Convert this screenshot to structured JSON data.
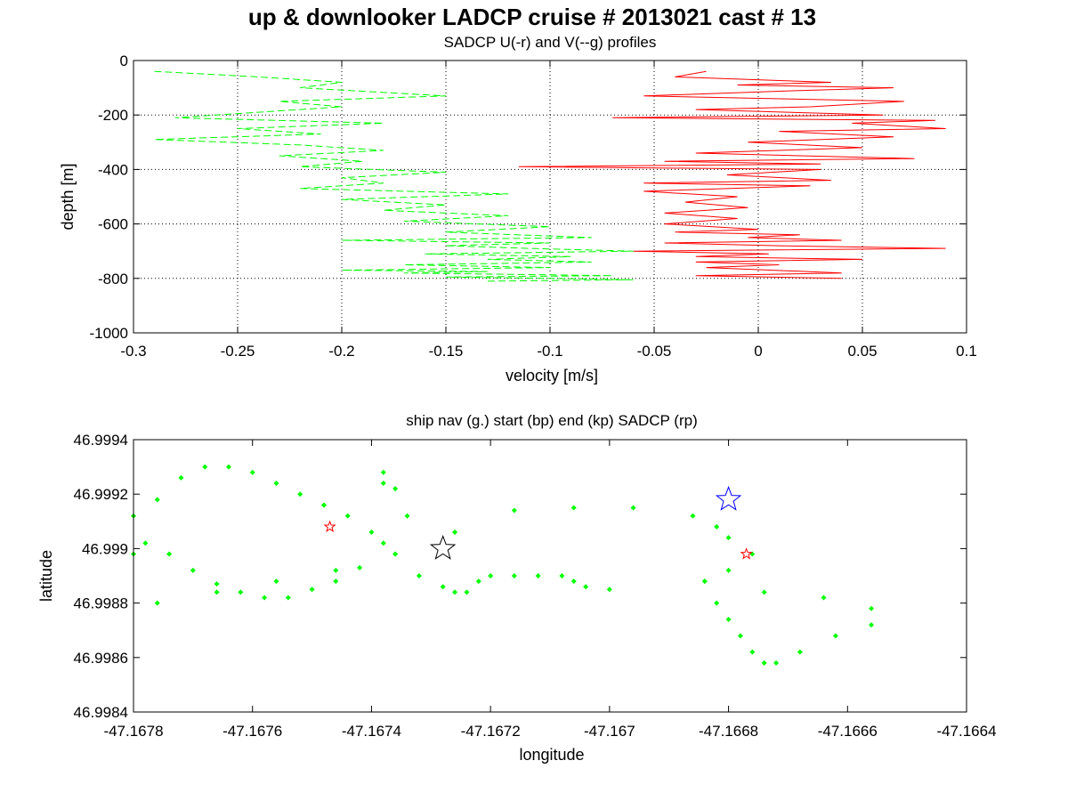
{
  "figure": {
    "title": "up & downlooker LADCP cruise # 2013021 cast # 13"
  },
  "chart_data": [
    {
      "type": "line",
      "title": "SADCP U(-r) and V(--g) profiles",
      "xlabel": "velocity [m/s]",
      "ylabel": "depth [m]",
      "xlim": [
        -0.3,
        0.1
      ],
      "ylim": [
        -1000,
        0
      ],
      "xticks": [
        -0.3,
        -0.25,
        -0.2,
        -0.15,
        -0.1,
        -0.05,
        0,
        0.05,
        0.1
      ],
      "xtick_labels": [
        "-0.3",
        "-0.25",
        "-0.2",
        "-0.15",
        "-0.1",
        "-0.05",
        "0",
        "0.05",
        "0.1"
      ],
      "yticks": [
        -1000,
        -800,
        -600,
        -400,
        -200,
        0
      ],
      "ytick_labels": [
        "-1000",
        "-800",
        "-600",
        "-400",
        "-200",
        "0"
      ],
      "grid": true,
      "series": [
        {
          "key": "U",
          "color": "#ff0000",
          "style": "solid",
          "x": [
            -0.025,
            -0.04,
            0.035,
            -0.01,
            0.065,
            0.02,
            -0.055,
            0.07,
            0.025,
            -0.03,
            0.06,
            -0.07,
            0.085,
            0.045,
            0.09,
            0.01,
            0.065,
            -0.005,
            0.05,
            -0.03,
            0.075,
            -0.045,
            0.03,
            -0.115,
            0.03,
            -0.015,
            0.035,
            -0.055,
            0.025,
            -0.055,
            -0.01,
            -0.035,
            -0.005,
            -0.045,
            -0.01,
            -0.045,
            0.0,
            -0.04,
            0.02,
            -0.005,
            0.04,
            -0.045,
            0.01,
            0.09,
            -0.06,
            0.005,
            -0.03,
            0.05,
            -0.03,
            0.01,
            -0.025,
            0.04,
            -0.03,
            0.04
          ],
          "y": [
            -40,
            -60,
            -80,
            -90,
            -100,
            -110,
            -130,
            -150,
            -170,
            -180,
            -200,
            -210,
            -220,
            -230,
            -250,
            -260,
            -280,
            -300,
            -320,
            -340,
            -360,
            -370,
            -380,
            -390,
            -400,
            -420,
            -440,
            -450,
            -460,
            -480,
            -500,
            -520,
            -540,
            -560,
            -580,
            -600,
            -620,
            -630,
            -640,
            -650,
            -660,
            -670,
            -680,
            -690,
            -700,
            -710,
            -720,
            -730,
            -740,
            -750,
            -760,
            -780,
            -790,
            -800
          ]
        },
        {
          "key": "V",
          "color": "#00ff00",
          "style": "dashed",
          "x": [
            -0.29,
            -0.24,
            -0.2,
            -0.22,
            -0.15,
            -0.23,
            -0.2,
            -0.24,
            -0.28,
            -0.18,
            -0.25,
            -0.21,
            -0.29,
            -0.22,
            -0.18,
            -0.23,
            -0.19,
            -0.22,
            -0.15,
            -0.2,
            -0.18,
            -0.22,
            -0.12,
            -0.2,
            -0.15,
            -0.18,
            -0.12,
            -0.17,
            -0.1,
            -0.15,
            -0.08,
            -0.2,
            -0.1,
            -0.15,
            -0.11,
            -0.06,
            -0.16,
            -0.09,
            -0.13,
            -0.08,
            -0.17,
            -0.1,
            -0.2,
            -0.13,
            -0.17,
            -0.12,
            -0.07,
            -0.15,
            -0.1,
            -0.06,
            -0.13
          ],
          "y": [
            -40,
            -60,
            -80,
            -100,
            -130,
            -150,
            -170,
            -190,
            -210,
            -230,
            -250,
            -270,
            -290,
            -310,
            -330,
            -350,
            -370,
            -390,
            -410,
            -430,
            -450,
            -470,
            -490,
            -510,
            -530,
            -550,
            -570,
            -590,
            -610,
            -630,
            -650,
            -660,
            -670,
            -680,
            -690,
            -700,
            -710,
            -720,
            -730,
            -740,
            -750,
            -760,
            -770,
            -775,
            -780,
            -785,
            -790,
            -795,
            -800,
            -805,
            -810
          ]
        }
      ]
    },
    {
      "type": "scatter",
      "title": "ship nav (g.) start (bp) end (kp) SADCP (rp)",
      "xlabel": "longitude",
      "ylabel": "latitude",
      "xlim": [
        -47.1678,
        -47.1664
      ],
      "ylim": [
        46.9984,
        46.9994
      ],
      "xticks": [
        -47.1678,
        -47.1676,
        -47.1674,
        -47.1672,
        -47.167,
        -47.1668,
        -47.1666,
        -47.1664
      ],
      "xtick_labels": [
        "-47.1678",
        "-47.1676",
        "-47.1674",
        "-47.1672",
        "-47.167",
        "-47.1668",
        "-47.1666",
        "-47.1664"
      ],
      "yticks": [
        46.9984,
        46.9986,
        46.9988,
        46.999,
        46.9992,
        46.9994
      ],
      "ytick_labels": [
        "46.9984",
        "46.9986",
        "46.9988",
        "46.999",
        "46.9992",
        "46.9994"
      ],
      "grid": false,
      "ship_nav": {
        "color": "#00ff00",
        "lon": [
          -47.1678,
          -47.16776,
          -47.16772,
          -47.16768,
          -47.16764,
          -47.1676,
          -47.16756,
          -47.16752,
          -47.16748,
          -47.16744,
          -47.1674,
          -47.16736,
          -47.16732,
          -47.16728,
          -47.16726,
          -47.16724,
          -47.16722,
          -47.1672,
          -47.16716,
          -47.16712,
          -47.16708,
          -47.16706,
          -47.16704,
          -47.167,
          -47.16684,
          -47.16674,
          -47.16664,
          -47.16656,
          -47.16656,
          -47.16662,
          -47.16668,
          -47.16672,
          -47.16674,
          -47.16676,
          -47.16678,
          -47.1668,
          -47.16682,
          -47.16684,
          -47.1668,
          -47.16676,
          -47.1668,
          -47.16682,
          -47.16686,
          -47.16696,
          -47.16706,
          -47.16716,
          -47.16726,
          -47.16736,
          -47.16746,
          -47.16756,
          -47.16766,
          -47.16776,
          -47.1678,
          -47.16778,
          -47.16774,
          -47.1677,
          -47.16766,
          -47.16762,
          -47.16758,
          -47.16754,
          -47.1675,
          -47.16746,
          -47.16742,
          -47.16738,
          -47.16734,
          -47.16736,
          -47.16738,
          -47.16738
        ],
        "lat": [
          46.99912,
          46.99918,
          46.99926,
          46.9993,
          46.9993,
          46.99928,
          46.99924,
          46.9992,
          46.99916,
          46.99912,
          46.99906,
          46.99898,
          46.9989,
          46.99886,
          46.99884,
          46.99884,
          46.99888,
          46.9989,
          46.9989,
          46.9989,
          46.9989,
          46.99888,
          46.99886,
          46.99885,
          46.99888,
          46.99884,
          46.99882,
          46.99878,
          46.99872,
          46.99868,
          46.99862,
          46.99858,
          46.99858,
          46.99862,
          46.99868,
          46.99874,
          46.9988,
          46.99888,
          46.99892,
          46.99898,
          46.99904,
          46.99908,
          46.99912,
          46.99915,
          46.99915,
          46.99914,
          46.99906,
          46.99898,
          46.99892,
          46.99888,
          46.99884,
          46.9988,
          46.99898,
          46.99902,
          46.99898,
          46.99892,
          46.99887,
          46.99884,
          46.99882,
          46.99882,
          46.99885,
          46.99888,
          46.99893,
          46.99902,
          46.99912,
          46.99922,
          46.99928,
          46.99924
        ]
      },
      "start": {
        "color": "#0000ff",
        "lon": -47.1668,
        "lat": 46.99918
      },
      "end": {
        "color": "#000000",
        "lon": -47.16728,
        "lat": 46.999
      },
      "sadcp": {
        "color": "#ff0000",
        "points": [
          {
            "lon": -47.16747,
            "lat": 46.99908
          },
          {
            "lon": -47.16677,
            "lat": 46.99898
          }
        ]
      }
    }
  ]
}
